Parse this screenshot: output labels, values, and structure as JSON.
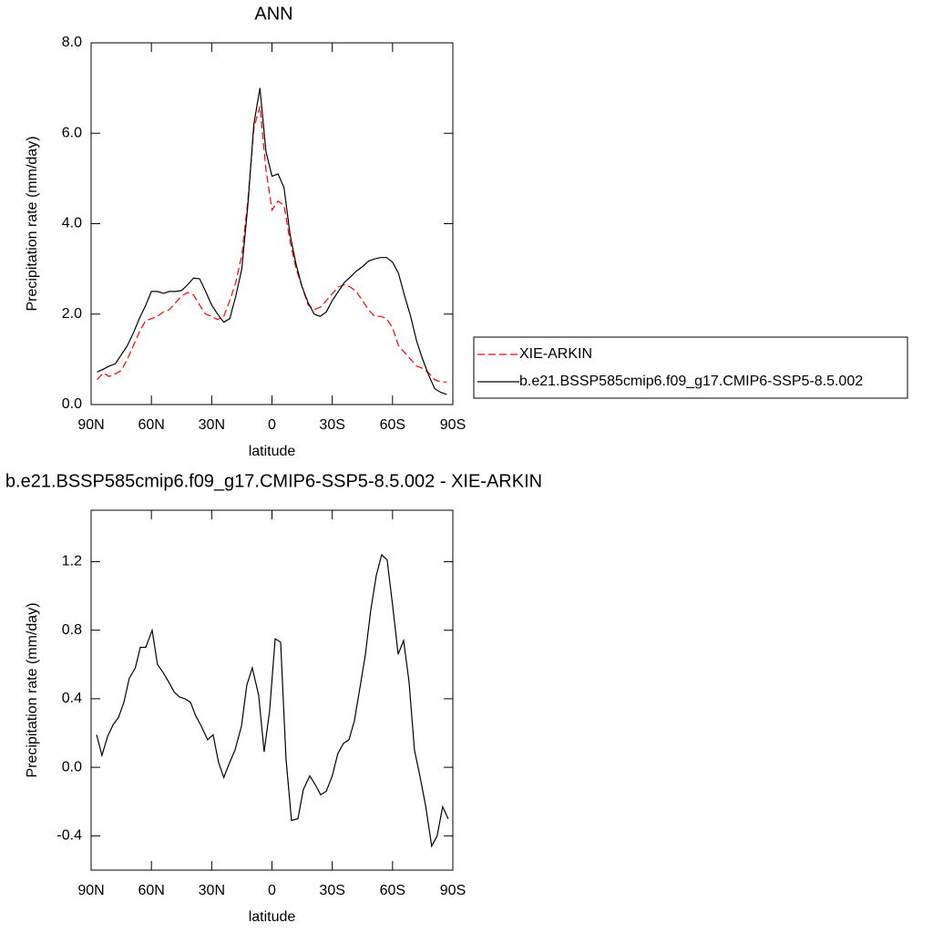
{
  "chart_data": [
    {
      "type": "line",
      "title": "ANN",
      "xlabel": "latitude",
      "ylabel": "Precipitation rate (mm/day)",
      "x": [
        87,
        84,
        81,
        78,
        75,
        72,
        69,
        66,
        63,
        60,
        57,
        54,
        51,
        48,
        45,
        42,
        39,
        36,
        33,
        30,
        27,
        24,
        21,
        18,
        15,
        12,
        9,
        6,
        3,
        0,
        -3,
        -6,
        -9,
        -12,
        -15,
        -18,
        -21,
        -24,
        -27,
        -30,
        -33,
        -36,
        -39,
        -42,
        -45,
        -48,
        -51,
        -54,
        -57,
        -60,
        -63,
        -66,
        -69,
        -72,
        -75,
        -78,
        -81,
        -84,
        -87
      ],
      "series": [
        {
          "name": "XIE-ARKIN",
          "color": "#ff0000",
          "style": "dashed",
          "values": [
            0.55,
            0.7,
            0.62,
            0.68,
            0.75,
            1.0,
            1.3,
            1.6,
            1.85,
            1.9,
            1.95,
            2.05,
            2.1,
            2.25,
            2.4,
            2.48,
            2.42,
            2.2,
            2.0,
            1.95,
            1.88,
            1.95,
            2.3,
            2.7,
            3.3,
            4.5,
            6.1,
            6.6,
            5.2,
            4.3,
            4.5,
            4.4,
            3.6,
            3.0,
            2.6,
            2.2,
            2.1,
            2.15,
            2.3,
            2.45,
            2.6,
            2.65,
            2.6,
            2.5,
            2.3,
            2.1,
            1.95,
            1.95,
            1.9,
            1.7,
            1.3,
            1.15,
            1.0,
            0.85,
            0.8,
            0.7,
            0.55,
            0.5,
            0.5
          ]
        },
        {
          "name": "b.e21.BSSP585cmip6.f09_g17.CMIP6-SSP5-8.5.002",
          "color": "#000000",
          "style": "solid",
          "values": [
            0.72,
            0.78,
            0.85,
            0.9,
            1.1,
            1.3,
            1.58,
            1.9,
            2.18,
            2.5,
            2.5,
            2.46,
            2.5,
            2.5,
            2.52,
            2.65,
            2.8,
            2.78,
            2.5,
            2.2,
            2.0,
            1.82,
            1.9,
            2.4,
            3.0,
            4.4,
            6.2,
            7.0,
            5.6,
            5.05,
            5.1,
            4.8,
            3.75,
            3.1,
            2.6,
            2.25,
            2.0,
            1.95,
            2.05,
            2.3,
            2.5,
            2.7,
            2.82,
            2.95,
            3.05,
            3.17,
            3.22,
            3.25,
            3.25,
            3.15,
            2.9,
            2.4,
            1.95,
            1.4,
            1.0,
            0.65,
            0.35,
            0.27,
            0.22
          ]
        }
      ],
      "xlim": [
        90,
        -90
      ],
      "xticks": [
        {
          "value": 90,
          "label": "90N"
        },
        {
          "value": 60,
          "label": "60N"
        },
        {
          "value": 30,
          "label": "30N"
        },
        0,
        {
          "value": -30,
          "label": "30S"
        },
        {
          "value": -60,
          "label": "60S"
        },
        {
          "value": -90,
          "label": "90S"
        }
      ],
      "ylim": [
        0,
        8
      ],
      "yticks": [
        {
          "value": 0,
          "label": "0.0"
        },
        {
          "value": 2,
          "label": "2.0"
        },
        {
          "value": 4,
          "label": "4.0"
        },
        {
          "value": 6,
          "label": "6.0"
        },
        {
          "value": 8,
          "label": "8.0"
        }
      ],
      "legend": "right"
    },
    {
      "type": "line",
      "title": "b.e21.BSSP585cmip6.f09_g17.CMIP6-SSP5-8.5.002 - XIE-ARKIN",
      "xlabel": "latitude",
      "ylabel": "Precipitation rate (mm/day)",
      "x": [
        87.3,
        84.6,
        81.8,
        79,
        76.4,
        73.7,
        71,
        68,
        65.5,
        62.8,
        59.6,
        57,
        54,
        51.5,
        48.7,
        46,
        43.3,
        40.6,
        37.9,
        35.2,
        32,
        29.3,
        26.6,
        24,
        21,
        18.4,
        15.2,
        12.5,
        9.8,
        6.6,
        3.9,
        1.2,
        -1.6,
        -4.3,
        -7,
        -9.7,
        -12.9,
        -15.6,
        -18.8,
        -21.5,
        -24.2,
        -27,
        -30,
        -32.8,
        -35.6,
        -38.3,
        -41,
        -43.7,
        -46.4,
        -49.2,
        -51.9,
        -54.6,
        -57.3,
        -60,
        -62.8,
        -65.5,
        -68.2,
        -70.9,
        -73.6,
        -76.4,
        -79.5,
        -82.2,
        -84.9,
        -87.7
      ],
      "values": [
        0.19,
        0.07,
        0.18,
        0.25,
        0.29,
        0.38,
        0.52,
        0.58,
        0.7,
        0.7,
        0.8,
        0.6,
        0.55,
        0.5,
        0.44,
        0.41,
        0.4,
        0.38,
        0.3,
        0.24,
        0.16,
        0.19,
        0.03,
        -0.06,
        0.03,
        0.1,
        0.24,
        0.48,
        0.58,
        0.42,
        0.09,
        0.33,
        0.75,
        0.73,
        0.05,
        -0.31,
        -0.3,
        -0.13,
        -0.05,
        -0.1,
        -0.16,
        -0.14,
        -0.05,
        0.08,
        0.14,
        0.16,
        0.27,
        0.46,
        0.65,
        0.92,
        1.12,
        1.24,
        1.21,
        0.95,
        0.66,
        0.74,
        0.5,
        0.1,
        -0.05,
        -0.22,
        -0.46,
        -0.4,
        -0.23,
        -0.3
      ],
      "color": "#000000",
      "xlim": [
        90,
        -90
      ],
      "xticks": [
        {
          "value": 90,
          "label": "90N"
        },
        {
          "value": 60,
          "label": "60N"
        },
        {
          "value": 30,
          "label": "30N"
        },
        0,
        {
          "value": -30,
          "label": "30S"
        },
        {
          "value": -60,
          "label": "60S"
        },
        {
          "value": -90,
          "label": "90S"
        }
      ],
      "ylim": [
        -0.6,
        1.5
      ],
      "yticks": [
        -0.4,
        {
          "value": 0,
          "label": "0.0"
        },
        0.4,
        0.8,
        1.2
      ]
    }
  ]
}
